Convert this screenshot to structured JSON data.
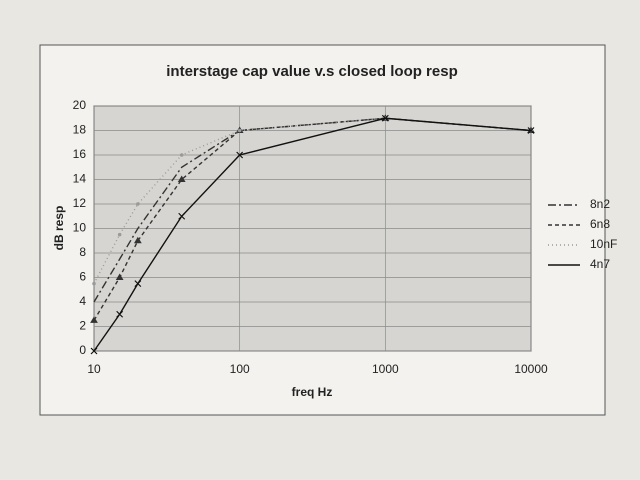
{
  "chart_data": {
    "type": "line",
    "title": "interstage cap value v.s closed loop resp",
    "x_label": "freq Hz",
    "y_label": "dB resp",
    "x": [
      10,
      15,
      20,
      40,
      100,
      1000,
      10000
    ],
    "series": [
      {
        "name": "8n2",
        "color": "#333333",
        "dash": "8 3 2 3",
        "marker": "none",
        "values": [
          4,
          7.5,
          10,
          15,
          18,
          19,
          18
        ]
      },
      {
        "name": "6n8",
        "color": "#333333",
        "dash": "4 3",
        "marker": "triangle",
        "values": [
          2.5,
          6,
          9,
          14,
          18,
          19,
          18
        ]
      },
      {
        "name": "10nF",
        "color": "#9a9a9a",
        "dash": "1 3",
        "marker": "dot",
        "values": [
          5.5,
          9.5,
          12,
          16,
          18,
          19,
          18
        ]
      },
      {
        "name": "4n7",
        "color": "#111111",
        "dash": "none",
        "marker": "x",
        "values": [
          0,
          3,
          5.5,
          11,
          16,
          19,
          18
        ]
      }
    ],
    "xlim": [
      10,
      10000
    ],
    "xticks": [
      10,
      100,
      1000,
      10000
    ],
    "xlog": true,
    "ylim": [
      0,
      20
    ],
    "yticks": [
      0,
      2,
      4,
      6,
      8,
      10,
      12,
      14,
      16,
      18,
      20
    ],
    "grid": true,
    "legend": "right"
  }
}
